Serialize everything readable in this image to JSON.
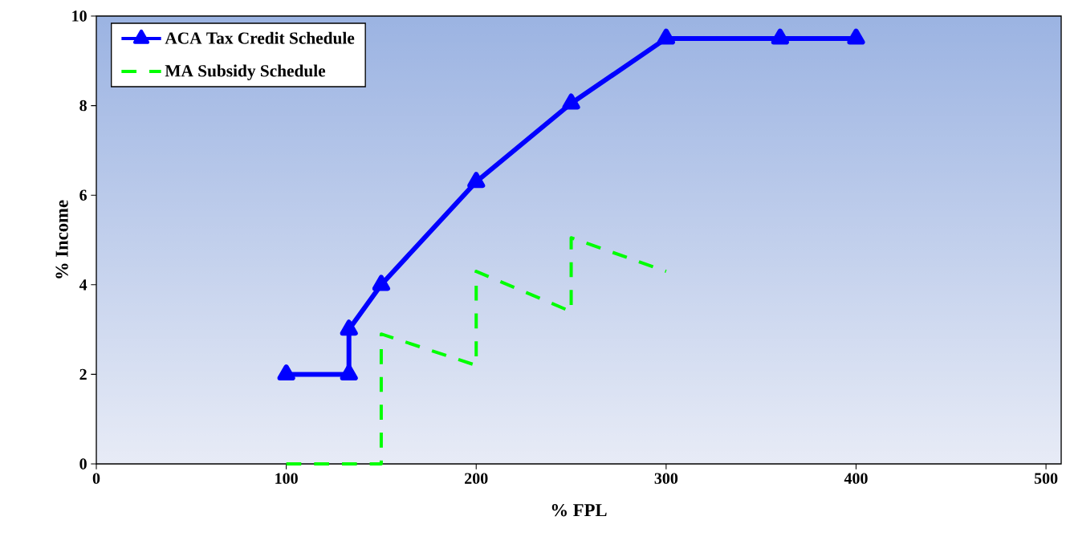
{
  "chart_data": {
    "type": "line",
    "xlabel": "% FPL",
    "ylabel": "% Income",
    "xlim": [
      0,
      508
    ],
    "ylim": [
      0,
      10
    ],
    "xticks": [
      0,
      100,
      200,
      300,
      400,
      500
    ],
    "yticks": [
      0,
      2,
      4,
      6,
      8,
      10
    ],
    "legend": "top left",
    "grid": false,
    "series": [
      {
        "name": "ACA Tax Credit Schedule",
        "color": "#0000ff",
        "marker": "triangle",
        "line_style": "solid",
        "x": [
          100,
          133,
          133,
          150,
          200,
          250,
          300,
          360,
          400
        ],
        "values": [
          2,
          2,
          3,
          4,
          6.3,
          8.05,
          9.5,
          9.5,
          9.5
        ]
      },
      {
        "name": "MA Subsidy Schedule",
        "color": "#00ff00",
        "marker": "none",
        "line_style": "dashed",
        "x": [
          100,
          150,
          150,
          200,
          200,
          250,
          250,
          300
        ],
        "values": [
          0,
          0,
          2.9,
          2.2,
          4.3,
          3.4,
          5.05,
          4.3
        ]
      }
    ]
  }
}
